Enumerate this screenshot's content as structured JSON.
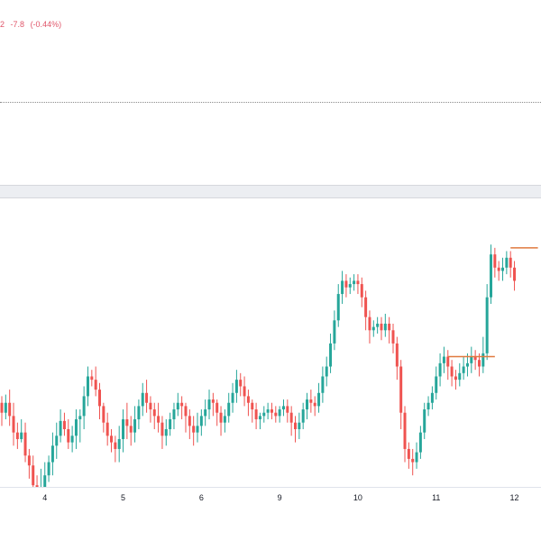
{
  "legend": {
    "partial_value": "2",
    "change": "-7.8",
    "change_pct": "(-0.44%)",
    "color": "#e0566a"
  },
  "colors": {
    "up": "#26a69a",
    "down": "#ef5350",
    "level": "#e07a3f",
    "dotted": "#8a8a8a"
  },
  "chart_data": {
    "type": "candlestick",
    "x_ticks": [
      {
        "label": "4",
        "bar": 11
      },
      {
        "label": "5",
        "bar": 31
      },
      {
        "label": "6",
        "bar": 51
      },
      {
        "label": "9",
        "bar": 71
      },
      {
        "label": "10",
        "bar": 91
      },
      {
        "label": "11",
        "bar": 111
      },
      {
        "label": "12",
        "bar": 131
      }
    ],
    "ylim": [
      145,
      320
    ],
    "candles": [
      [
        196,
        190,
        182,
        200
      ],
      [
        190,
        196,
        186,
        201
      ],
      [
        196,
        188,
        182,
        204
      ],
      [
        188,
        178,
        170,
        196
      ],
      [
        178,
        174,
        168,
        184
      ],
      [
        174,
        178,
        172,
        186
      ],
      [
        178,
        164,
        160,
        184
      ],
      [
        164,
        158,
        150,
        168
      ],
      [
        158,
        146,
        140,
        164
      ],
      [
        146,
        138,
        130,
        152
      ],
      [
        138,
        144,
        136,
        156
      ],
      [
        144,
        152,
        140,
        160
      ],
      [
        152,
        160,
        148,
        164
      ],
      [
        160,
        170,
        152,
        178
      ],
      [
        170,
        176,
        162,
        184
      ],
      [
        176,
        185,
        172,
        192
      ],
      [
        185,
        180,
        176,
        190
      ],
      [
        180,
        172,
        168,
        186
      ],
      [
        172,
        176,
        166,
        182
      ],
      [
        176,
        186,
        168,
        192
      ],
      [
        186,
        188,
        172,
        192
      ],
      [
        188,
        200,
        180,
        206
      ],
      [
        200,
        212,
        194,
        218
      ],
      [
        212,
        210,
        206,
        216
      ],
      [
        210,
        204,
        200,
        218
      ],
      [
        204,
        194,
        186,
        208
      ],
      [
        194,
        184,
        178,
        196
      ],
      [
        184,
        176,
        170,
        190
      ],
      [
        176,
        172,
        166,
        180
      ],
      [
        172,
        168,
        160,
        176
      ],
      [
        168,
        174,
        160,
        182
      ],
      [
        174,
        186,
        166,
        192
      ],
      [
        186,
        182,
        174,
        196
      ],
      [
        182,
        178,
        170,
        188
      ],
      [
        178,
        186,
        172,
        194
      ],
      [
        186,
        194,
        180,
        198
      ],
      [
        194,
        202,
        188,
        208
      ],
      [
        202,
        196,
        190,
        210
      ],
      [
        196,
        192,
        184,
        200
      ],
      [
        192,
        188,
        180,
        196
      ],
      [
        188,
        184,
        178,
        196
      ],
      [
        184,
        176,
        168,
        188
      ],
      [
        176,
        180,
        170,
        186
      ],
      [
        180,
        186,
        176,
        190
      ],
      [
        186,
        192,
        180,
        196
      ],
      [
        192,
        196,
        188,
        202
      ],
      [
        196,
        194,
        186,
        200
      ],
      [
        194,
        188,
        178,
        196
      ],
      [
        188,
        182,
        174,
        192
      ],
      [
        182,
        178,
        170,
        188
      ],
      [
        178,
        182,
        172,
        190
      ],
      [
        182,
        188,
        176,
        192
      ],
      [
        188,
        192,
        182,
        198
      ],
      [
        192,
        198,
        186,
        204
      ],
      [
        198,
        196,
        188,
        202
      ],
      [
        196,
        190,
        182,
        198
      ],
      [
        190,
        184,
        176,
        194
      ],
      [
        184,
        188,
        178,
        192
      ],
      [
        188,
        196,
        184,
        202
      ],
      [
        196,
        202,
        190,
        208
      ],
      [
        202,
        210,
        196,
        216
      ],
      [
        210,
        206,
        200,
        214
      ],
      [
        206,
        200,
        194,
        212
      ],
      [
        200,
        196,
        188,
        204
      ],
      [
        196,
        192,
        184,
        198
      ],
      [
        192,
        186,
        180,
        196
      ],
      [
        186,
        188,
        180,
        190
      ],
      [
        188,
        190,
        184,
        194
      ],
      [
        190,
        192,
        186,
        196
      ],
      [
        192,
        190,
        186,
        196
      ],
      [
        190,
        188,
        184,
        194
      ],
      [
        188,
        192,
        184,
        194
      ],
      [
        192,
        194,
        188,
        198
      ],
      [
        194,
        190,
        184,
        198
      ],
      [
        190,
        184,
        176,
        194
      ],
      [
        184,
        180,
        172,
        188
      ],
      [
        180,
        184,
        174,
        190
      ],
      [
        184,
        192,
        180,
        196
      ],
      [
        192,
        198,
        186,
        202
      ],
      [
        198,
        196,
        190,
        204
      ],
      [
        196,
        194,
        188,
        200
      ],
      [
        194,
        202,
        190,
        208
      ],
      [
        202,
        212,
        196,
        218
      ],
      [
        212,
        218,
        206,
        224
      ],
      [
        218,
        232,
        214,
        238
      ],
      [
        232,
        246,
        228,
        252
      ],
      [
        246,
        262,
        242,
        268
      ],
      [
        262,
        270,
        256,
        276
      ],
      [
        270,
        266,
        260,
        274
      ],
      [
        266,
        268,
        262,
        272
      ],
      [
        268,
        270,
        264,
        274
      ],
      [
        270,
        268,
        262,
        274
      ],
      [
        268,
        260,
        254,
        272
      ],
      [
        260,
        248,
        240,
        264
      ],
      [
        248,
        240,
        232,
        252
      ],
      [
        240,
        242,
        236,
        246
      ],
      [
        242,
        244,
        238,
        248
      ],
      [
        244,
        240,
        234,
        248
      ],
      [
        240,
        244,
        236,
        250
      ],
      [
        244,
        240,
        232,
        248
      ],
      [
        240,
        232,
        226,
        244
      ],
      [
        232,
        218,
        210,
        236
      ],
      [
        218,
        190,
        180,
        222
      ],
      [
        190,
        168,
        160,
        194
      ],
      [
        168,
        162,
        156,
        172
      ],
      [
        162,
        160,
        152,
        168
      ],
      [
        160,
        166,
        156,
        172
      ],
      [
        166,
        178,
        162,
        182
      ],
      [
        178,
        192,
        174,
        196
      ],
      [
        192,
        196,
        188,
        200
      ],
      [
        196,
        202,
        192,
        206
      ],
      [
        202,
        212,
        198,
        218
      ],
      [
        212,
        220,
        206,
        226
      ],
      [
        220,
        224,
        214,
        230
      ],
      [
        224,
        218,
        210,
        228
      ],
      [
        218,
        212,
        206,
        222
      ],
      [
        212,
        210,
        204,
        216
      ],
      [
        210,
        214,
        206,
        220
      ],
      [
        214,
        218,
        210,
        224
      ],
      [
        218,
        220,
        212,
        226
      ],
      [
        220,
        224,
        214,
        230
      ],
      [
        224,
        222,
        216,
        228
      ],
      [
        222,
        218,
        212,
        226
      ],
      [
        218,
        226,
        214,
        236
      ],
      [
        226,
        260,
        222,
        268
      ],
      [
        260,
        286,
        256,
        292
      ],
      [
        286,
        278,
        272,
        290
      ],
      [
        278,
        276,
        270,
        282
      ],
      [
        276,
        278,
        270,
        284
      ],
      [
        278,
        284,
        274,
        288
      ],
      [
        284,
        278,
        272,
        288
      ],
      [
        278,
        270,
        264,
        282
      ]
    ],
    "levels": [
      {
        "start": 114,
        "end": 126,
        "value": 224
      },
      {
        "start": 130,
        "end": 137,
        "value": 290
      }
    ]
  }
}
